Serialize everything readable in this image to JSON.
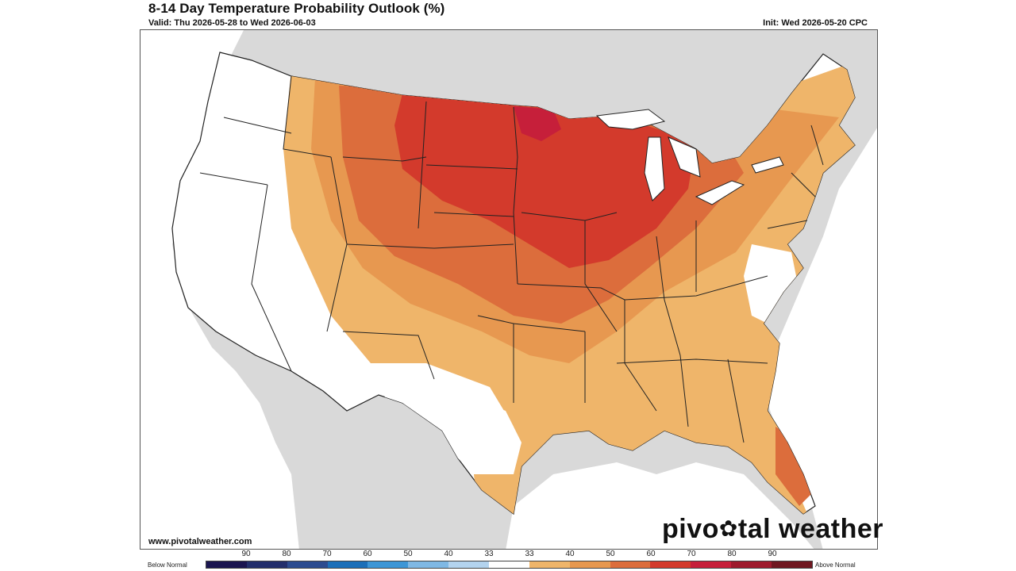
{
  "header": {
    "title": "8-14 Day Temperature Probability Outlook (%)",
    "valid": "Valid: Thu 2026-05-28 to Wed 2026-06-03",
    "init": "Init: Wed 2026-05-20 CPC"
  },
  "footer": {
    "url": "www.pivotalweather.com",
    "brand_before": "pivo",
    "brand_gear": "✿",
    "brand_after": "tal weather"
  },
  "legend": {
    "below_label": "Below Normal",
    "above_label": "Above Normal",
    "ticks": [
      "90",
      "80",
      "70",
      "60",
      "50",
      "40",
      "33",
      "33",
      "40",
      "50",
      "60",
      "70",
      "80",
      "90"
    ],
    "colors": [
      "#1b1550",
      "#232e6b",
      "#2c4b8f",
      "#1c6fb8",
      "#3d96d6",
      "#7fb8e4",
      "#b3d3ee",
      "#ffffff",
      "#efb56a",
      "#e79850",
      "#dc6d3c",
      "#d33a2c",
      "#c61f3a",
      "#9e1b2d",
      "#6f1720"
    ]
  },
  "map": {
    "colors": {
      "land": "#ffffff",
      "background": "#d9d9d9",
      "water": "#ffffff",
      "a33": "#efb56a",
      "a40": "#e79850",
      "a50": "#dc6d3c",
      "a60": "#d33a2c",
      "a70": "#c61f3a"
    }
  }
}
